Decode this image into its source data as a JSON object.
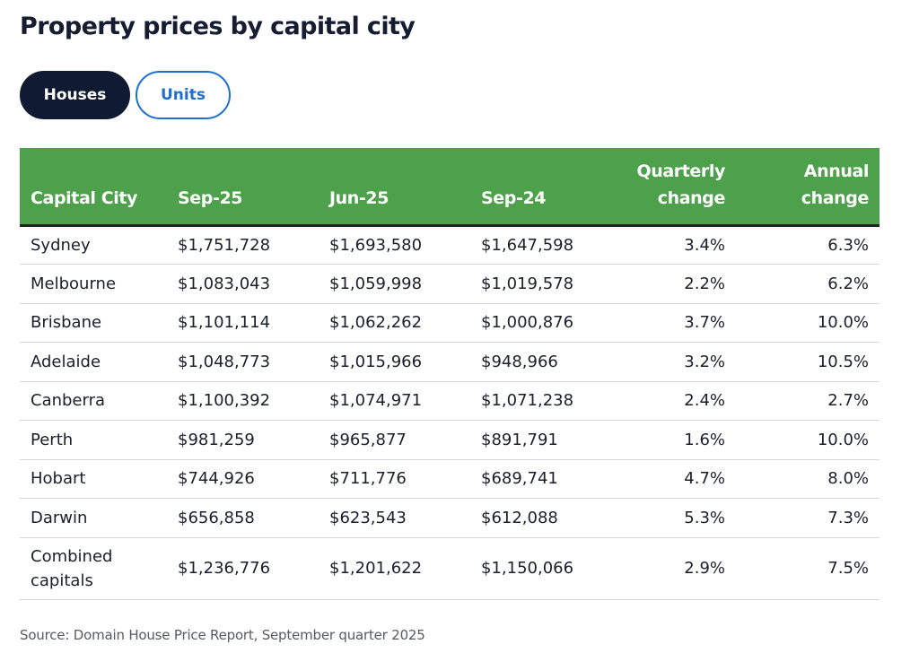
{
  "title": "Property prices by capital city",
  "tabs": {
    "houses": "Houses",
    "units": "Units",
    "selected": "Houses"
  },
  "colors": {
    "header_bg": "#4da14a",
    "active_tab_bg": "#111a33",
    "inactive_tab_accent": "#1f6fd1"
  },
  "table": {
    "headers": {
      "city": "Capital City",
      "sep25": "Sep-25",
      "jun25": "Jun-25",
      "sep24": "Sep-24",
      "quarterly": "Quarterly change",
      "annual": "Annual change"
    },
    "rows": [
      {
        "city": "Sydney",
        "sep25": "$1,751,728",
        "jun25": "$1,693,580",
        "sep24": "$1,647,598",
        "quarterly": "3.4%",
        "annual": "6.3%"
      },
      {
        "city": "Melbourne",
        "sep25": "$1,083,043",
        "jun25": "$1,059,998",
        "sep24": "$1,019,578",
        "quarterly": "2.2%",
        "annual": "6.2%"
      },
      {
        "city": "Brisbane",
        "sep25": "$1,101,114",
        "jun25": "$1,062,262",
        "sep24": "$1,000,876",
        "quarterly": "3.7%",
        "annual": "10.0%"
      },
      {
        "city": "Adelaide",
        "sep25": "$1,048,773",
        "jun25": "$1,015,966",
        "sep24": "$948,966",
        "quarterly": "3.2%",
        "annual": "10.5%"
      },
      {
        "city": "Canberra",
        "sep25": "$1,100,392",
        "jun25": "$1,074,971",
        "sep24": "$1,071,238",
        "quarterly": "2.4%",
        "annual": "2.7%"
      },
      {
        "city": "Perth",
        "sep25": "$981,259",
        "jun25": "$965,877",
        "sep24": "$891,791",
        "quarterly": "1.6%",
        "annual": "10.0%"
      },
      {
        "city": "Hobart",
        "sep25": "$744,926",
        "jun25": "$711,776",
        "sep24": "$689,741",
        "quarterly": "4.7%",
        "annual": "8.0%"
      },
      {
        "city": "Darwin",
        "sep25": "$656,858",
        "jun25": "$623,543",
        "sep24": "$612,088",
        "quarterly": "5.3%",
        "annual": "7.3%"
      },
      {
        "city": "Combined capitals",
        "sep25": "$1,236,776",
        "jun25": "$1,201,622",
        "sep24": "$1,150,066",
        "quarterly": "2.9%",
        "annual": "7.5%"
      }
    ]
  },
  "source": "Source: Domain House Price Report, September quarter 2025"
}
